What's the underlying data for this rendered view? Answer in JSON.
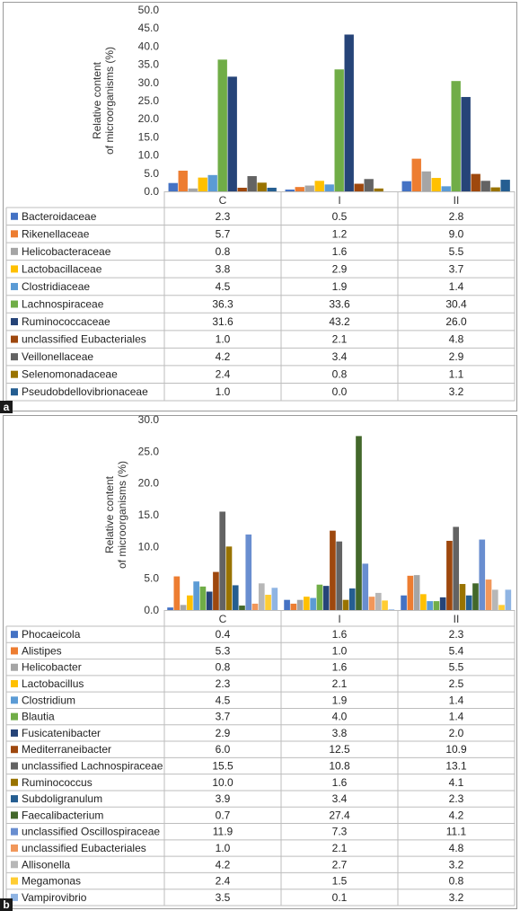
{
  "panels": [
    {
      "letter": "a",
      "chart_data": {
        "type": "bar",
        "ylabel": "Relative content of microorganisms (%)",
        "ylim": [
          0,
          50
        ],
        "yticks": [
          "0.0",
          "5.0",
          "10.0",
          "15.0",
          "20.0",
          "25.0",
          "30.0",
          "35.0",
          "40.0",
          "45.0",
          "50.0"
        ],
        "categories": [
          "C",
          "I",
          "II"
        ],
        "grid": false,
        "legend": "data-table below plot",
        "series": [
          {
            "name": "Bacteroidaceae",
            "color": "#4472C4",
            "values": [
              2.3,
              0.5,
              2.8
            ]
          },
          {
            "name": "Rikenellaceae",
            "color": "#ED7D31",
            "values": [
              5.7,
              1.2,
              9.0
            ]
          },
          {
            "name": "Helicobacteraceae",
            "color": "#A5A5A5",
            "values": [
              0.8,
              1.6,
              5.5
            ]
          },
          {
            "name": "Lactobacillaceae",
            "color": "#FFC000",
            "values": [
              3.8,
              2.9,
              3.7
            ]
          },
          {
            "name": "Clostridiaceae",
            "color": "#5B9BD5",
            "values": [
              4.5,
              1.9,
              1.4
            ]
          },
          {
            "name": "Lachnospiraceae",
            "color": "#70AD47",
            "values": [
              36.3,
              33.6,
              30.4
            ]
          },
          {
            "name": "Ruminococcaceae",
            "color": "#264478",
            "values": [
              31.6,
              43.2,
              26.0
            ]
          },
          {
            "name": "unclassified Eubacteriales",
            "color": "#9E480E",
            "values": [
              1.0,
              2.1,
              4.8
            ]
          },
          {
            "name": "Veillonellaceae",
            "color": "#636363",
            "values": [
              4.2,
              3.4,
              2.9
            ]
          },
          {
            "name": "Selenomonadaceae",
            "color": "#997300",
            "values": [
              2.4,
              0.8,
              1.1
            ]
          },
          {
            "name": "Pseudobdellovibrionaceae",
            "color": "#255E91",
            "values": [
              1.0,
              0.0,
              3.2
            ]
          }
        ]
      }
    },
    {
      "letter": "b",
      "chart_data": {
        "type": "bar",
        "ylabel": "Relative content of microorganisms (%)",
        "ylim": [
          0,
          30
        ],
        "yticks": [
          "0.0",
          "5.0",
          "10.0",
          "15.0",
          "20.0",
          "25.0",
          "30.0"
        ],
        "categories": [
          "C",
          "I",
          "II"
        ],
        "grid": false,
        "legend": "data-table below plot",
        "series": [
          {
            "name": "Phocaeicola",
            "color": "#4472C4",
            "values": [
              0.4,
              1.6,
              2.3
            ]
          },
          {
            "name": "Alistipes",
            "color": "#ED7D31",
            "values": [
              5.3,
              1.0,
              5.4
            ]
          },
          {
            "name": "Helicobacter",
            "color": "#A5A5A5",
            "values": [
              0.8,
              1.6,
              5.5
            ]
          },
          {
            "name": "Lactobacillus",
            "color": "#FFC000",
            "values": [
              2.3,
              2.1,
              2.5
            ]
          },
          {
            "name": "Clostridium",
            "color": "#5B9BD5",
            "values": [
              4.5,
              1.9,
              1.4
            ]
          },
          {
            "name": "Blautia",
            "color": "#70AD47",
            "values": [
              3.7,
              4.0,
              1.4
            ]
          },
          {
            "name": "Fusicatenibacter",
            "color": "#264478",
            "values": [
              2.9,
              3.8,
              2.0
            ]
          },
          {
            "name": "Mediterraneibacter",
            "color": "#9E480E",
            "values": [
              6.0,
              12.5,
              10.9
            ]
          },
          {
            "name": "unclassified Lachnospiraceae",
            "color": "#636363",
            "values": [
              15.5,
              10.8,
              13.1
            ]
          },
          {
            "name": "Ruminococcus",
            "color": "#997300",
            "values": [
              10.0,
              1.6,
              4.1
            ]
          },
          {
            "name": "Subdoligranulum",
            "color": "#255E91",
            "values": [
              3.9,
              3.4,
              2.3
            ]
          },
          {
            "name": "Faecalibacterium",
            "color": "#43682B",
            "values": [
              0.7,
              27.4,
              4.2
            ]
          },
          {
            "name": "unclassified Oscillospiraceae",
            "color": "#698ED0",
            "values": [
              11.9,
              7.3,
              11.1
            ]
          },
          {
            "name": "unclassified Eubacteriales",
            "color": "#F1975A",
            "values": [
              1.0,
              2.1,
              4.8
            ]
          },
          {
            "name": "Allisonella",
            "color": "#B7B7B7",
            "values": [
              4.2,
              2.7,
              3.2
            ]
          },
          {
            "name": "Megamonas",
            "color": "#FFCD33",
            "values": [
              2.4,
              1.5,
              0.8
            ]
          },
          {
            "name": "Vampirovibrio",
            "color": "#8FB4E3",
            "values": [
              3.5,
              0.1,
              3.2
            ]
          }
        ]
      }
    }
  ]
}
